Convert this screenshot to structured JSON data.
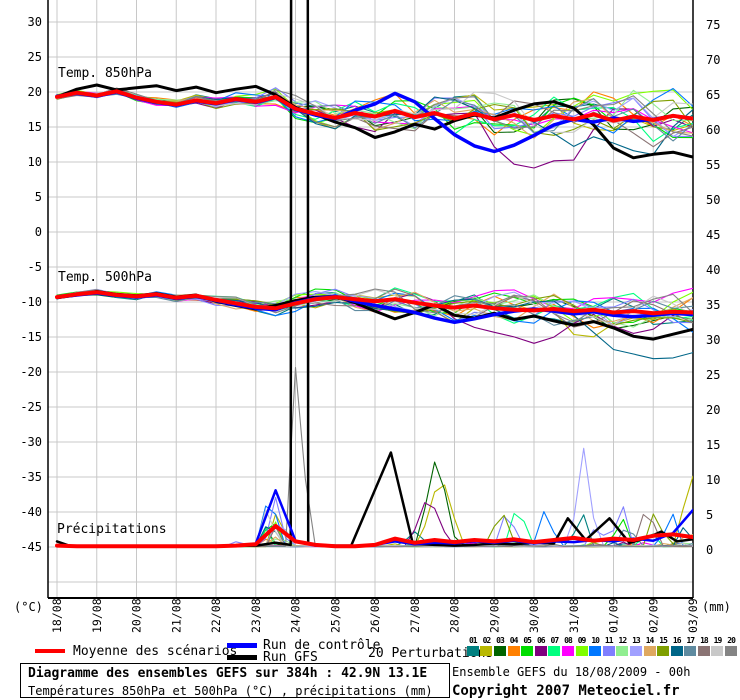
{
  "chart_data": {
    "type": "line",
    "title": "Diagramme des ensembles GEFS sur 384h : 42.9N 13.1E",
    "subtitle": "Températures 850hPa et 500hPa (°C) , précipitations (mm)",
    "x_axis": {
      "labels": [
        "18/08",
        "19/08",
        "20/08",
        "21/08",
        "22/08",
        "23/08",
        "24/08",
        "25/08",
        "26/08",
        "27/08",
        "28/08",
        "29/08",
        "30/08",
        "31/08",
        "01/09",
        "02/09",
        "03/09"
      ],
      "step_hours": 12,
      "total_hours": 384
    },
    "y_left": {
      "unit": "(°C)",
      "ticks": [
        "30",
        "25",
        "20",
        "15",
        "10",
        "5",
        "0",
        "-5",
        "-10",
        "-15",
        "-20",
        "-25",
        "-30",
        "-35",
        "-40",
        "-45"
      ]
    },
    "y_right": {
      "unit": "(mm)",
      "ticks": [
        "75",
        "70",
        "65",
        "60",
        "55",
        "50",
        "45",
        "40",
        "35",
        "30",
        "25",
        "20",
        "15",
        "10",
        "5",
        "0"
      ]
    },
    "colors": {
      "mean": "#ff0000",
      "control": "#0000ff",
      "gfs": "#000000",
      "grid": "#c8c8c8",
      "axis": "#000000"
    },
    "perturbations": {
      "count": 20,
      "labels": [
        "01",
        "02",
        "03",
        "04",
        "05",
        "06",
        "07",
        "08",
        "09",
        "10",
        "11",
        "12",
        "13",
        "14",
        "15",
        "16",
        "17",
        "18",
        "19",
        "20"
      ],
      "colors": [
        "#008080",
        "#b8b800",
        "#006400",
        "#ff8000",
        "#00dd00",
        "#7f007f",
        "#00ff7f",
        "#ff00ff",
        "#7fff00",
        "#0077ff",
        "#7f7fff",
        "#90ee90",
        "#a0a0ff",
        "#dfa860",
        "#7f9f00",
        "#006688",
        "#5f8ba0",
        "#8a7474",
        "#c8c8c8",
        "#848484"
      ],
      "number_color": "#000000"
    },
    "panels": {
      "t850": {
        "label": "Temp. 850hPa",
        "mean": [
          19.3,
          19.9,
          19.5,
          20.1,
          19.2,
          18.6,
          18.2,
          18.8,
          18.4,
          19.0,
          18.6,
          19.3,
          17.6,
          16.9,
          16.3,
          17.0,
          16.5,
          17.3,
          16.4,
          17.0,
          16.2,
          16.9,
          16.1,
          16.7,
          16.0,
          16.6,
          16.1,
          16.8,
          15.9,
          16.5,
          16.0,
          16.6,
          16.2
        ],
        "control": [
          19.4,
          19.8,
          19.4,
          20.0,
          19.1,
          18.5,
          18.1,
          18.7,
          18.3,
          18.9,
          18.5,
          19.2,
          17.5,
          16.7,
          16.2,
          17.4,
          18.3,
          19.8,
          18.6,
          16.2,
          13.9,
          12.3,
          11.5,
          12.4,
          13.8,
          15.3,
          16.1,
          15.7,
          16.3,
          15.8,
          16.1,
          16.6,
          16.2
        ],
        "gfs": [
          19.3,
          20.4,
          21.0,
          20.3,
          20.6,
          20.9,
          20.2,
          20.7,
          19.9,
          20.4,
          20.8,
          19.6,
          17.8,
          16.8,
          15.7,
          14.9,
          13.5,
          14.3,
          15.4,
          14.7,
          15.9,
          16.7,
          16.3,
          17.4,
          18.3,
          18.6,
          17.7,
          15.3,
          12.0,
          10.6,
          11.1,
          11.4,
          10.7
        ],
        "spread": [
          0.3,
          0.35,
          0.4,
          0.45,
          0.5,
          0.55,
          0.6,
          0.65,
          0.7,
          0.8,
          1.0,
          1.2,
          1.5,
          1.7,
          1.9,
          2.0,
          2.2,
          2.3,
          2.4,
          2.5,
          2.6,
          2.6,
          2.7,
          2.7,
          2.8,
          2.9,
          3.0,
          3.1,
          3.2,
          3.3,
          3.4,
          3.5,
          3.6
        ]
      },
      "t500": {
        "label": "Temp. 500hPa",
        "mean": [
          -9.3,
          -8.9,
          -8.6,
          -9.0,
          -9.2,
          -8.9,
          -9.4,
          -9.1,
          -9.7,
          -10.2,
          -10.7,
          -10.9,
          -10.2,
          -9.6,
          -9.3,
          -9.6,
          -9.9,
          -9.6,
          -10.1,
          -10.5,
          -10.8,
          -10.5,
          -10.9,
          -11.1,
          -11.2,
          -11.0,
          -11.3,
          -11.1,
          -11.5,
          -11.3,
          -11.6,
          -11.4,
          -11.5
        ],
        "control": [
          -9.3,
          -9.0,
          -8.7,
          -9.1,
          -9.3,
          -9.0,
          -9.5,
          -9.2,
          -9.8,
          -10.4,
          -10.9,
          -11.1,
          -10.1,
          -9.5,
          -9.2,
          -9.9,
          -10.5,
          -11.0,
          -11.5,
          -12.3,
          -12.9,
          -12.4,
          -11.8,
          -11.3,
          -11.0,
          -11.3,
          -11.7,
          -11.4,
          -11.9,
          -12.1,
          -11.9,
          -11.6,
          -11.8
        ],
        "gfs": [
          -9.4,
          -9.0,
          -8.5,
          -8.9,
          -9.1,
          -8.8,
          -9.3,
          -9.0,
          -9.9,
          -10.5,
          -11.0,
          -10.5,
          -9.8,
          -9.3,
          -9.2,
          -10.1,
          -11.3,
          -12.4,
          -11.5,
          -10.4,
          -11.9,
          -12.3,
          -11.6,
          -12.5,
          -12.0,
          -12.7,
          -13.3,
          -12.8,
          -13.7,
          -14.9,
          -15.3,
          -14.6,
          -13.9
        ],
        "spread": [
          0.25,
          0.3,
          0.35,
          0.4,
          0.45,
          0.5,
          0.55,
          0.6,
          0.7,
          0.8,
          0.9,
          1.0,
          1.1,
          1.2,
          1.3,
          1.5,
          1.6,
          1.7,
          1.8,
          1.9,
          2.0,
          2.0,
          2.1,
          2.1,
          2.2,
          2.2,
          2.3,
          2.3,
          2.4,
          2.4,
          2.5,
          2.5,
          2.5
        ]
      },
      "precip": {
        "label": "Précipitations",
        "mean": [
          0.2,
          0.1,
          0.1,
          0.1,
          0.1,
          0.1,
          0.1,
          0.1,
          0.1,
          0.2,
          0.4,
          3.0,
          0.8,
          0.3,
          0.1,
          0.1,
          0.3,
          1.2,
          0.6,
          1.0,
          0.7,
          1.0,
          0.8,
          1.1,
          0.7,
          1.0,
          1.3,
          0.9,
          1.2,
          1.0,
          1.6,
          1.8,
          1.4
        ],
        "control": [
          0.1,
          0.1,
          0.1,
          0.1,
          0.1,
          0.1,
          0.1,
          0.1,
          0.1,
          0.1,
          0.5,
          8.1,
          0.9,
          0.2,
          0.1,
          0.1,
          0.3,
          0.8,
          0.4,
          0.6,
          0.5,
          0.8,
          0.6,
          0.9,
          0.5,
          0.8,
          0.7,
          1.0,
          0.8,
          1.2,
          0.9,
          2.0,
          5.3
        ],
        "gfs_points": [
          [
            0,
            0.8
          ],
          [
            0.3,
            0.2
          ],
          [
            1,
            0.1
          ],
          [
            2,
            0.1
          ],
          [
            3,
            0.1
          ],
          [
            4,
            0.1
          ],
          [
            5,
            0.2
          ],
          [
            5.5,
            0.6
          ],
          [
            5.88,
            0.3
          ],
          [
            5.93,
            400
          ],
          [
            6.27,
            400
          ],
          [
            6.32,
            0.5
          ],
          [
            6.6,
            0.3
          ],
          [
            7,
            0.2
          ],
          [
            7.4,
            0.2
          ],
          [
            8.4,
            13.5
          ],
          [
            8.95,
            0.5
          ],
          [
            9.5,
            0.3
          ],
          [
            10,
            0.2
          ],
          [
            10.5,
            0.3
          ],
          [
            11,
            0.5
          ],
          [
            11.5,
            0.4
          ],
          [
            12,
            0.6
          ],
          [
            12.5,
            0.5
          ],
          [
            12.85,
            4.1
          ],
          [
            13.3,
            1.0
          ],
          [
            13.9,
            4.1
          ],
          [
            14.4,
            0.6
          ],
          [
            14.8,
            1.2
          ],
          [
            15.2,
            2.2
          ],
          [
            15.6,
            0.8
          ],
          [
            16,
            1.1
          ]
        ],
        "member_events": [
          {
            "m": 10,
            "c": 5.35,
            "w": 0.35,
            "p": 8.0
          },
          {
            "m": 11,
            "c": 5.5,
            "w": 0.3,
            "p": 7.0
          },
          {
            "m": 19,
            "c": 5.3,
            "w": 0.3,
            "p": 6.3
          },
          {
            "m": 2,
            "c": 5.55,
            "w": 0.3,
            "p": 5.5
          },
          {
            "m": 5,
            "c": 5.4,
            "w": 0.28,
            "p": 5.0
          },
          {
            "m": 13,
            "c": 5.6,
            "w": 0.3,
            "p": 4.6
          },
          {
            "m": 16,
            "c": 5.35,
            "w": 0.3,
            "p": 4.2
          },
          {
            "m": 9,
            "c": 5.5,
            "w": 0.25,
            "p": 3.5
          },
          {
            "m": 3,
            "c": 5.28,
            "w": 0.25,
            "p": 3.0
          },
          {
            "m": 18,
            "c": 5.5,
            "w": 0.22,
            "p": 2.8
          },
          {
            "m": 7,
            "c": 5.25,
            "w": 0.2,
            "p": 2.5
          },
          {
            "m": 14,
            "c": 5.42,
            "w": 0.2,
            "p": 2.2
          },
          {
            "m": 4,
            "c": 5.35,
            "w": 0.2,
            "p": 1.8
          },
          {
            "m": 12,
            "c": 5.6,
            "w": 0.3,
            "p": 1.6
          },
          {
            "m": 11,
            "c": 4.6,
            "w": 0.2,
            "p": 1.2
          },
          {
            "m": 20,
            "c": 6.1,
            "w": 0.18,
            "p": 57.5
          },
          {
            "m": 1,
            "c": 9.0,
            "w": 0.4,
            "p": 2.0
          },
          {
            "m": 3,
            "c": 9.55,
            "w": 0.5,
            "p": 13.4
          },
          {
            "m": 2,
            "c": 9.65,
            "w": 0.55,
            "p": 10.7
          },
          {
            "m": 6,
            "c": 9.35,
            "w": 0.5,
            "p": 7.7
          },
          {
            "m": 15,
            "c": 11.2,
            "w": 0.35,
            "p": 5.2
          },
          {
            "m": 11,
            "c": 11.35,
            "w": 0.3,
            "p": 5.6
          },
          {
            "m": 7,
            "c": 11.6,
            "w": 0.3,
            "p": 7.0
          },
          {
            "m": 10,
            "c": 12.3,
            "w": 0.3,
            "p": 6.0
          },
          {
            "m": 1,
            "c": 13.2,
            "w": 0.3,
            "p": 5.3
          },
          {
            "m": 13,
            "c": 13.25,
            "w": 0.35,
            "p": 14.0
          },
          {
            "m": 11,
            "c": 13.6,
            "w": 0.25,
            "p": 4.0
          },
          {
            "m": 5,
            "c": 14.2,
            "w": 0.3,
            "p": 4.5
          },
          {
            "m": 17,
            "c": 14.35,
            "w": 0.3,
            "p": 3.5
          },
          {
            "m": 11,
            "c": 14.2,
            "w": 0.3,
            "p": 6.7
          },
          {
            "m": 18,
            "c": 14.85,
            "w": 0.3,
            "p": 6.7
          },
          {
            "m": 15,
            "c": 15.05,
            "w": 0.3,
            "p": 5.5
          },
          {
            "m": 10,
            "c": 15.45,
            "w": 0.28,
            "p": 5.5
          },
          {
            "m": 7,
            "c": 14.9,
            "w": 0.25,
            "p": 3.0
          },
          {
            "m": 16,
            "c": 15.8,
            "w": 0.3,
            "p": 3.2
          },
          {
            "m": 2,
            "c": 16.05,
            "w": 0.55,
            "p": 11.0
          },
          {
            "m": 14,
            "c": 15.9,
            "w": 0.3,
            "p": 2.5
          }
        ]
      }
    },
    "anomalies": [
      {
        "panel": "t850",
        "m": 6,
        "c": 12.1,
        "w": 1.5,
        "d": -5.5
      },
      {
        "panel": "t850",
        "m": 16,
        "c": 14.7,
        "w": 1.3,
        "d": -6.0
      },
      {
        "panel": "t850",
        "m": 9,
        "c": 15.2,
        "w": 2.0,
        "d": 2.3
      },
      {
        "panel": "t850",
        "m": 19,
        "c": 10.0,
        "w": 2.5,
        "d": 1.8
      },
      {
        "panel": "t500",
        "m": 6,
        "c": 12.2,
        "w": 1.5,
        "d": -4.0
      },
      {
        "panel": "t500",
        "m": 16,
        "c": 15.0,
        "w": 1.4,
        "d": -5.5
      },
      {
        "panel": "t500",
        "m": 8,
        "c": 13.5,
        "w": 2.5,
        "d": 2.2
      },
      {
        "panel": "t500",
        "m": 2,
        "c": 14.0,
        "w": 2.0,
        "d": -2.0
      }
    ]
  },
  "legend": {
    "mean": "Moyenne des scénarios",
    "control": "Run de contrôle",
    "gfs": "Run GFS",
    "perturbations": "20 Perturbations"
  },
  "footer": {
    "run_info": "Ensemble GEFS du 18/08/2009 - 00h",
    "copyright": "Copyright 2007 Meteociel.fr"
  }
}
